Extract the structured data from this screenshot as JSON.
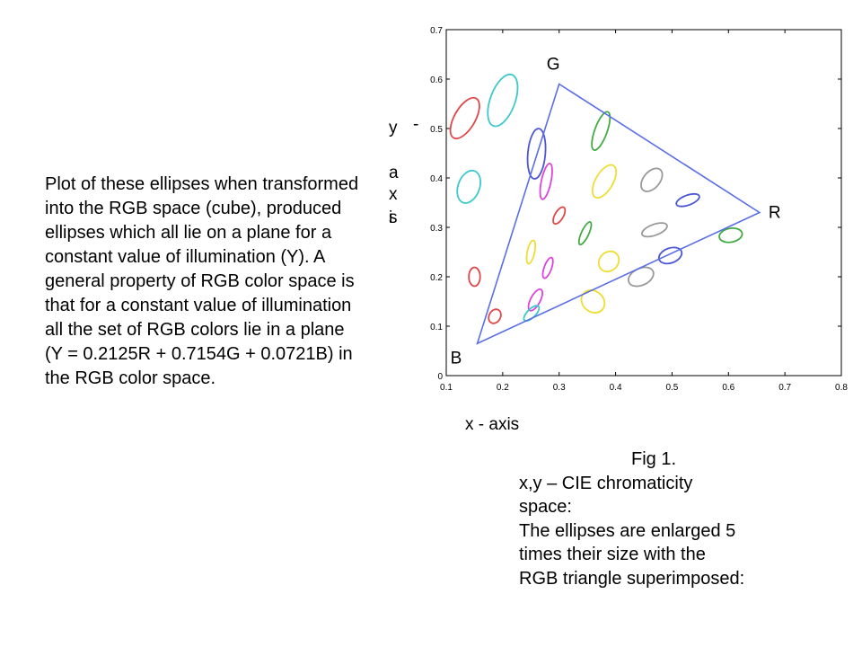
{
  "description_text": "Plot of these ellipses when transformed into the RGB space (cube), produced ellipses which all lie on a plane for a constant value of illumination (Y). A general property of RGB color space is that for a constant value of illumination all the set of RGB colors lie in a plane (Y = 0.2125R + 0.7154G + 0.0721B) in the RGB color space.",
  "caption": {
    "fig_label": "Fig 1.",
    "lines": [
      "x,y – CIE chromaticity",
      "space:",
      "The ellipses are enlarged 5",
      "times  their size with the",
      "RGB triangle superimposed:"
    ]
  },
  "chart_data": {
    "type": "scatter",
    "xlabel": "x - axis",
    "ylabel": "y -axis",
    "xlim": [
      0.1,
      0.8
    ],
    "ylim": [
      0,
      0.7
    ],
    "grid": false,
    "x_tick_labels": [
      "0.1",
      "0.2",
      "0.3",
      "0.4",
      "0.5",
      "0.6",
      "0.7",
      "0.8"
    ],
    "y_tick_labels": [
      "0",
      "0.1",
      "0.2",
      "0.3",
      "0.4",
      "0.5",
      "0.6",
      "0.7"
    ],
    "triangle": {
      "color": "#5a6ee6",
      "vertices": [
        {
          "label": "G",
          "x": 0.3,
          "y": 0.59
        },
        {
          "label": "R",
          "x": 0.655,
          "y": 0.33
        },
        {
          "label": "B",
          "x": 0.155,
          "y": 0.065
        }
      ]
    },
    "ellipses": [
      {
        "x": 0.133,
        "y": 0.521,
        "rx": 0.0185,
        "ry": 0.046,
        "angle": 30,
        "color": "#e0464a"
      },
      {
        "x": 0.2,
        "y": 0.557,
        "rx": 0.022,
        "ry": 0.055,
        "angle": 20,
        "color": "#3cc8cc"
      },
      {
        "x": 0.14,
        "y": 0.382,
        "rx": 0.019,
        "ry": 0.034,
        "angle": 20,
        "color": "#3cc8cc"
      },
      {
        "x": 0.26,
        "y": 0.449,
        "rx": 0.0155,
        "ry": 0.051,
        "angle": 5,
        "color": "#4a56d4"
      },
      {
        "x": 0.374,
        "y": 0.495,
        "rx": 0.011,
        "ry": 0.041,
        "angle": 20,
        "color": "#44aa44"
      },
      {
        "x": 0.277,
        "y": 0.393,
        "rx": 0.0085,
        "ry": 0.037,
        "angle": 12,
        "color": "#dd44dd"
      },
      {
        "x": 0.38,
        "y": 0.393,
        "rx": 0.0155,
        "ry": 0.037,
        "angle": 30,
        "color": "#eedd33"
      },
      {
        "x": 0.464,
        "y": 0.396,
        "rx": 0.0145,
        "ry": 0.027,
        "angle": 40,
        "color": "#999999"
      },
      {
        "x": 0.528,
        "y": 0.355,
        "rx": 0.0215,
        "ry": 0.01,
        "angle": -20,
        "color": "#4a56d4"
      },
      {
        "x": 0.3,
        "y": 0.324,
        "rx": 0.0075,
        "ry": 0.019,
        "angle": 30,
        "color": "#e0464a"
      },
      {
        "x": 0.346,
        "y": 0.288,
        "rx": 0.0065,
        "ry": 0.025,
        "angle": 25,
        "color": "#44aa44"
      },
      {
        "x": 0.469,
        "y": 0.295,
        "rx": 0.0235,
        "ry": 0.011,
        "angle": -20,
        "color": "#999999"
      },
      {
        "x": 0.25,
        "y": 0.25,
        "rx": 0.0065,
        "ry": 0.024,
        "angle": 12,
        "color": "#eedd33"
      },
      {
        "x": 0.28,
        "y": 0.218,
        "rx": 0.0065,
        "ry": 0.022,
        "angle": 20,
        "color": "#dd44dd"
      },
      {
        "x": 0.388,
        "y": 0.231,
        "rx": 0.0165,
        "ry": 0.022,
        "angle": 45,
        "color": "#eedd33"
      },
      {
        "x": 0.497,
        "y": 0.243,
        "rx": 0.021,
        "ry": 0.015,
        "angle": -20,
        "color": "#4a56d4"
      },
      {
        "x": 0.604,
        "y": 0.284,
        "rx": 0.0205,
        "ry": 0.014,
        "angle": -10,
        "color": "#44aa44"
      },
      {
        "x": 0.15,
        "y": 0.2,
        "rx": 0.01,
        "ry": 0.019,
        "angle": 0,
        "color": "#e0464a"
      },
      {
        "x": 0.186,
        "y": 0.12,
        "rx": 0.01,
        "ry": 0.015,
        "angle": 30,
        "color": "#e0464a"
      },
      {
        "x": 0.258,
        "y": 0.153,
        "rx": 0.0085,
        "ry": 0.024,
        "angle": 28,
        "color": "#dd44dd"
      },
      {
        "x": 0.251,
        "y": 0.126,
        "rx": 0.0075,
        "ry": 0.02,
        "angle": 45,
        "color": "#3cc8cc"
      },
      {
        "x": 0.36,
        "y": 0.15,
        "rx": 0.022,
        "ry": 0.021,
        "angle": 40,
        "color": "#eedd33"
      },
      {
        "x": 0.445,
        "y": 0.2,
        "rx": 0.0235,
        "ry": 0.017,
        "angle": -25,
        "color": "#999999"
      }
    ]
  }
}
